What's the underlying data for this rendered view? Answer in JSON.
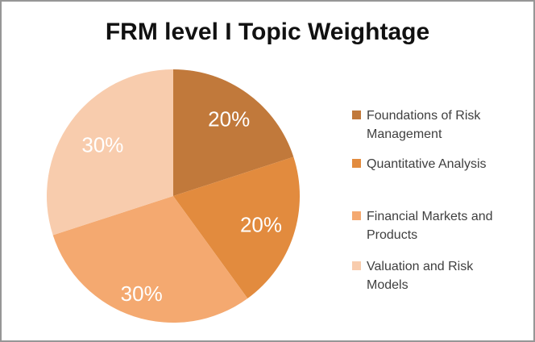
{
  "window": {
    "background": "#ffffff",
    "border_color": "#969696"
  },
  "chart_data": {
    "type": "pie",
    "title": "FRM level I Topic Weightage",
    "categories": [
      "Foundations of Risk Management",
      "Quantitative Analysis",
      "Financial Markets and Products",
      "Valuation and Risk Models"
    ],
    "values": [
      20,
      20,
      30,
      30
    ],
    "data_labels": [
      "20%",
      "20%",
      "30%",
      "30%"
    ],
    "colors": [
      "#C1793B",
      "#E28B3E",
      "#F4A970",
      "#F8CCAD"
    ],
    "data_label_color": "#ffffff",
    "title_color": "#111111",
    "legend_text_color": "#3f3f3f",
    "start_angle_deg": 0,
    "direction": "clockwise",
    "legend_position": "right",
    "grid": false
  }
}
